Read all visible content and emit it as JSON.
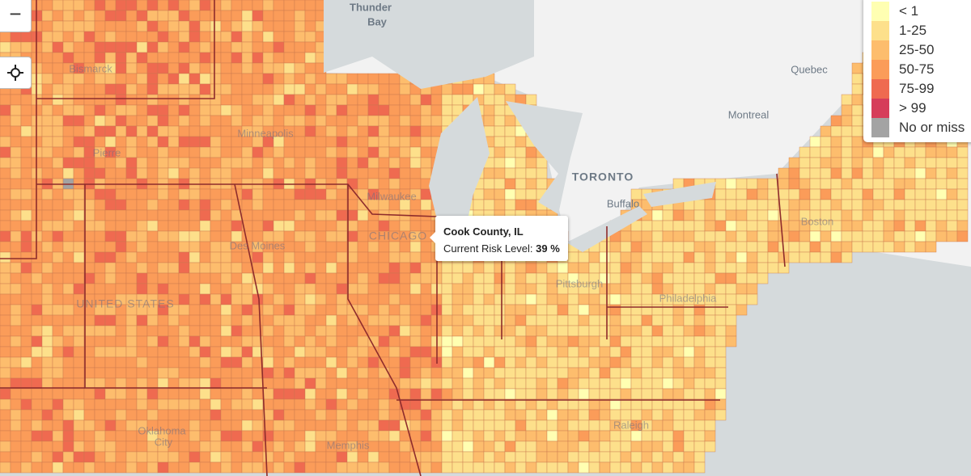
{
  "controls": {
    "zoom_out": "−"
  },
  "legend": {
    "items": [
      {
        "label": "< 1",
        "color": "#ffffb2"
      },
      {
        "label": "1-25",
        "color": "#fde08b"
      },
      {
        "label": "25-50",
        "color": "#fdbd6d"
      },
      {
        "label": "50-75",
        "color": "#fb9c59"
      },
      {
        "label": "75-99",
        "color": "#ef6a50"
      },
      {
        "label": "> 99",
        "color": "#d63d5a"
      },
      {
        "label": "No or miss",
        "color": "#a3a3a3"
      }
    ]
  },
  "places": [
    "Thunder",
    "Bay",
    "Bismarck",
    "Minneapolis",
    "Pierre",
    "Milwaukee",
    "CHICAGO",
    "Des Moines",
    "UNITED STATES",
    "TORONTO",
    "Buffalo",
    "Quebec",
    "Montreal",
    "Boston",
    "Pittsburgh",
    "Philadelphia",
    "Oklahoma",
    "City",
    "Memphis",
    "Raleigh"
  ],
  "tooltip": {
    "title": "Cook County, IL",
    "label": "Current Risk Level:",
    "value": "39 %"
  }
}
